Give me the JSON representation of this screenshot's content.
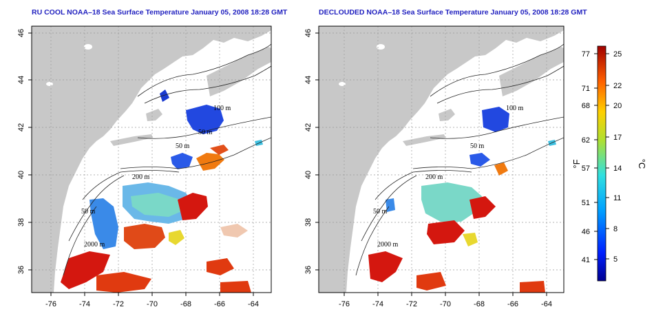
{
  "panels": [
    {
      "title": "RU COOL NOAA–18 Sea Surface Temperature January 05, 2008 18:28 GMT",
      "x_ticks": [
        "-76",
        "-74",
        "-72",
        "-70",
        "-68",
        "-66",
        "-64"
      ],
      "y_ticks": [
        "46",
        "44",
        "42",
        "40",
        "38",
        "36"
      ],
      "contours": [
        "100 m",
        "50 m",
        "50 m",
        "200 m",
        "50 m",
        "2000 m"
      ]
    },
    {
      "title": "DECLOUDED NOAA–18 Sea Surface Temperature January 05, 2008 18:28 GMT",
      "x_ticks": [
        "-76",
        "-74",
        "-72",
        "-70",
        "-68",
        "-66",
        "-64"
      ],
      "y_ticks": [
        "46",
        "44",
        "42",
        "40",
        "38",
        "36"
      ],
      "contours": [
        "100 m",
        "50 m",
        "200 m",
        "50 m",
        "2000 m"
      ]
    }
  ],
  "colorbar": {
    "f_label": "°F",
    "c_label": "°C",
    "f_ticks": [
      "77",
      "71",
      "68",
      "62",
      "57",
      "51",
      "46",
      "41"
    ],
    "c_ticks": [
      "25",
      "22",
      "20",
      "17",
      "14",
      "11",
      "8",
      "5"
    ]
  },
  "colors": {
    "land": "#c8c8c8",
    "title": "#1f1fbf",
    "cold": "#1f3fd8",
    "warm": "#d4170f",
    "mid": "#6fd0d8"
  }
}
